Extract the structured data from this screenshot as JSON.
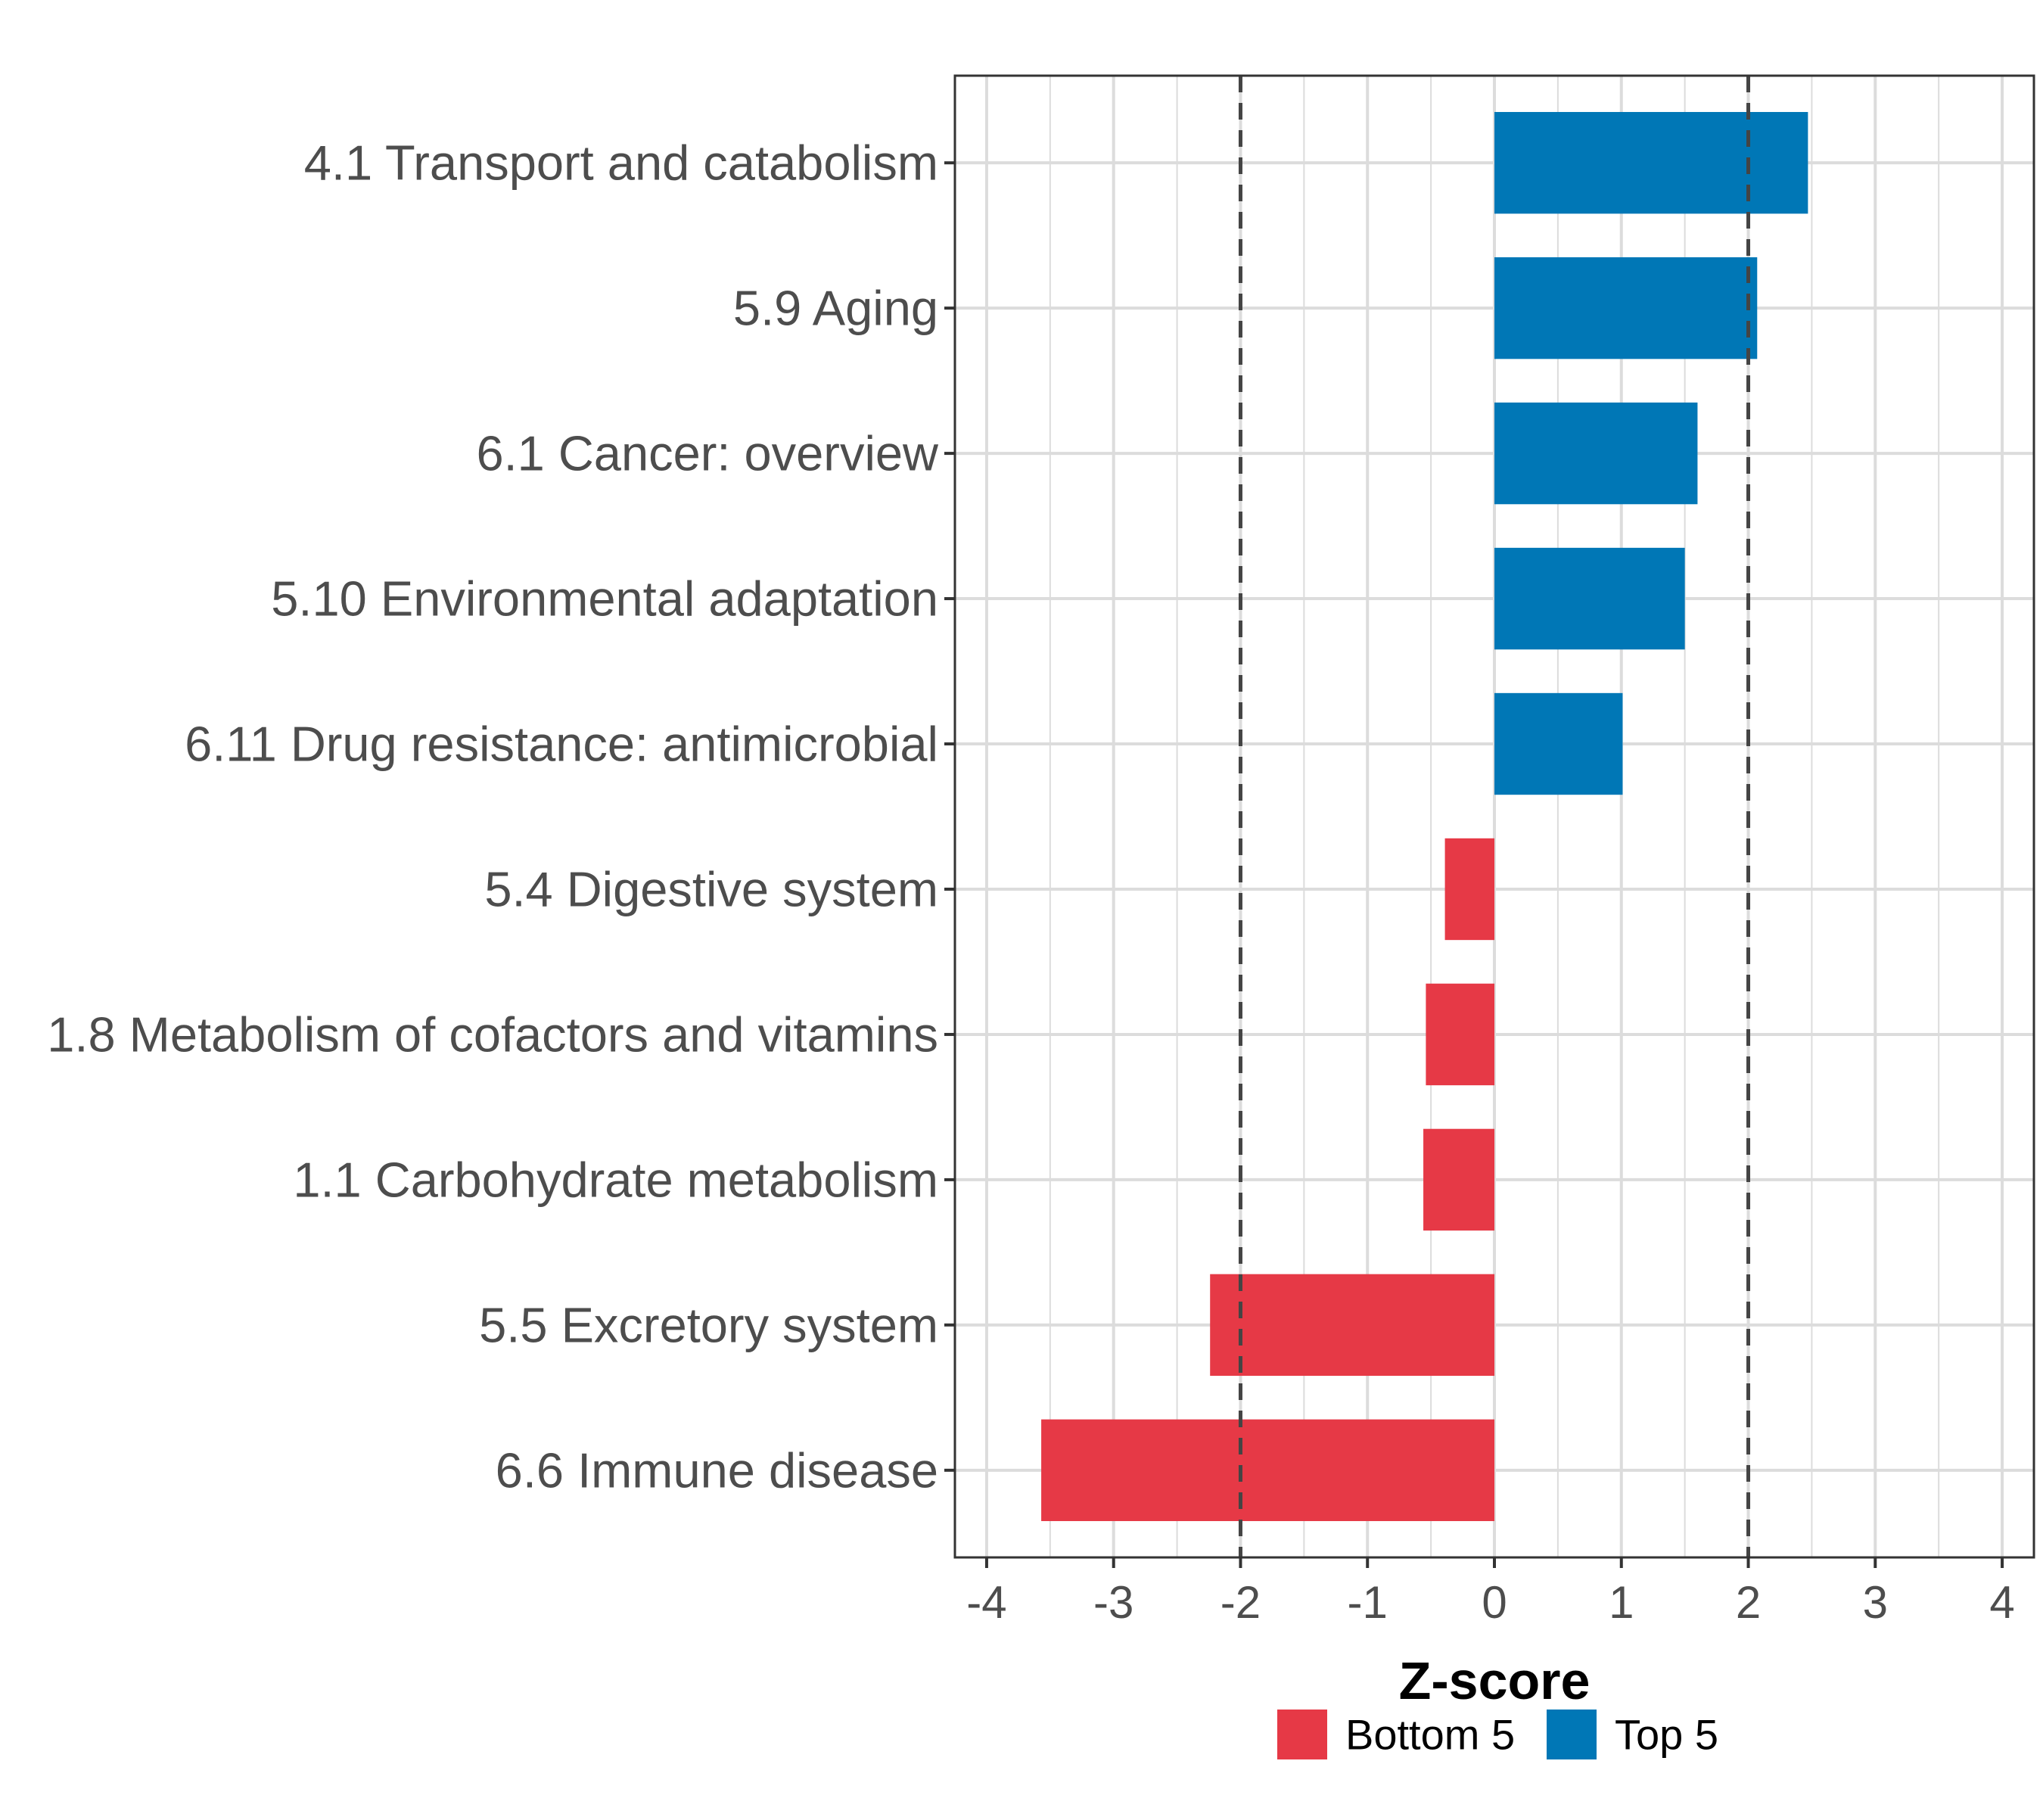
{
  "chart_data": {
    "type": "bar",
    "orientation": "horizontal",
    "title": "",
    "xlabel": "Z-score",
    "ylabel": "",
    "xlim": [
      -4.25,
      4.25
    ],
    "xticks": [
      -4,
      -3,
      -2,
      -1,
      0,
      1,
      2,
      3,
      4
    ],
    "xtick_labels": [
      "-4",
      "-3",
      "-2",
      "-1",
      "0",
      "1",
      "2",
      "3",
      "4"
    ],
    "reference_lines": [
      -2,
      2
    ],
    "grid": true,
    "legend_position": "bottom",
    "categories": [
      "4.1 Transport and catabolism",
      "5.9 Aging",
      "6.1 Cancer: overview",
      "5.10 Environmental adaptation",
      "6.11 Drug resistance: antimicrobial",
      "5.4 Digestive system",
      "1.8 Metabolism of cofactors and vitamins",
      "1.1 Carbohydrate metabolism",
      "5.5 Excretory system",
      "6.6 Immune disease"
    ],
    "values": [
      2.47,
      2.07,
      1.6,
      1.5,
      1.01,
      -0.39,
      -0.54,
      -0.56,
      -2.24,
      -3.57
    ],
    "groups": [
      "Top 5",
      "Top 5",
      "Top 5",
      "Top 5",
      "Top 5",
      "Bottom 5",
      "Bottom 5",
      "Bottom 5",
      "Bottom 5",
      "Bottom 5"
    ],
    "legend": [
      {
        "name": "Bottom 5",
        "color": "#E63946"
      },
      {
        "name": "Top 5",
        "color": "#0077B6"
      }
    ]
  }
}
